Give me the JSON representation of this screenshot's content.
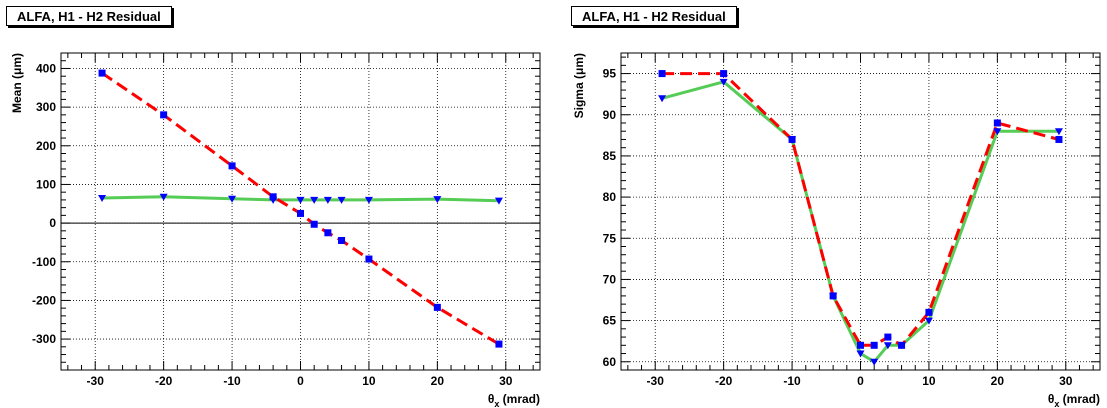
{
  "chart_data": [
    {
      "type": "line",
      "title": "ALFA, H1 - H2 Residual",
      "xlabel_symbol": "θ",
      "xlabel_sub": "x",
      "xlabel_unit": "(mrad)",
      "ylabel": "Mean (μm)",
      "xlim": [
        -35,
        35
      ],
      "ylim": [
        -380,
        440
      ],
      "xticks": [
        -30,
        -20,
        -10,
        0,
        10,
        20,
        30
      ],
      "yticks": [
        -300,
        -200,
        -100,
        0,
        100,
        200,
        300,
        400
      ],
      "grid": true,
      "zero_line": true,
      "series": [
        {
          "color": "#ff0000",
          "style": "dashed",
          "marker": "square",
          "marker_color": "#0000ff",
          "x": [
            -29,
            -20,
            -10,
            -4,
            0,
            2,
            4,
            6,
            10,
            20,
            29
          ],
          "y": [
            388,
            280,
            148,
            68,
            25,
            -3,
            -25,
            -45,
            -93,
            -218,
            -313
          ]
        },
        {
          "color": "#55cc55",
          "style": "solid",
          "marker": "triangle-down",
          "marker_color": "#0000ff",
          "x": [
            -29,
            -20,
            -10,
            -4,
            0,
            2,
            4,
            6,
            10,
            20,
            29
          ],
          "y": [
            65,
            68,
            63,
            60,
            60,
            60,
            60,
            60,
            60,
            62,
            58
          ]
        }
      ]
    },
    {
      "type": "line",
      "title": "ALFA, H1 - H2 Residual",
      "xlabel_symbol": "θ",
      "xlabel_sub": "x",
      "xlabel_unit": "(mrad)",
      "ylabel": "Sigma (μm)",
      "xlim": [
        -35,
        35
      ],
      "ylim": [
        59,
        97.5
      ],
      "xticks": [
        -30,
        -20,
        -10,
        0,
        10,
        20,
        30
      ],
      "yticks": [
        60,
        65,
        70,
        75,
        80,
        85,
        90,
        95
      ],
      "grid": true,
      "zero_line": false,
      "series": [
        {
          "color": "#ff0000",
          "style": "dashed",
          "marker": "square",
          "marker_color": "#0000ff",
          "x": [
            -29,
            -20,
            -10,
            -4,
            0,
            2,
            4,
            6,
            10,
            20,
            29
          ],
          "y": [
            95,
            95,
            87,
            68,
            62,
            62,
            63,
            62,
            66,
            89,
            87
          ]
        },
        {
          "color": "#55cc55",
          "style": "solid",
          "marker": "triangle-down",
          "marker_color": "#0000ff",
          "x": [
            -29,
            -20,
            -10,
            -4,
            0,
            2,
            4,
            6,
            10,
            20,
            29
          ],
          "y": [
            92,
            94,
            87,
            68,
            61,
            60,
            62,
            62,
            65,
            88,
            88
          ]
        }
      ]
    }
  ]
}
